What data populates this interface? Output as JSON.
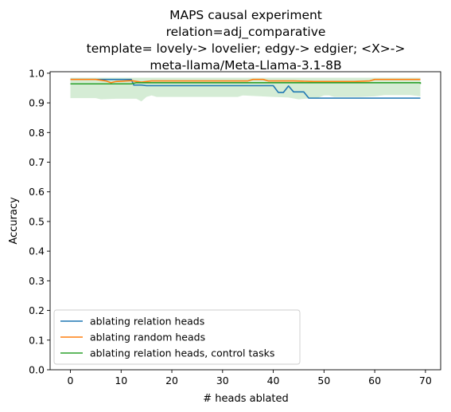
{
  "chart_data": {
    "type": "line",
    "title_lines": [
      "MAPS causal experiment",
      "relation=adj_comparative",
      "template= lovely-> lovelier; edgy-> edgier; <X>->",
      "meta-llama/Meta-Llama-3.1-8B"
    ],
    "xlabel": "# heads ablated",
    "ylabel": "Accuracy",
    "xlim": [
      -4,
      73
    ],
    "ylim": [
      0.0,
      1.005
    ],
    "xticks": [
      0,
      10,
      20,
      30,
      40,
      50,
      60,
      70
    ],
    "xtick_labels": [
      "0",
      "10",
      "20",
      "30",
      "40",
      "50",
      "60",
      "70"
    ],
    "yticks": [
      0.0,
      0.1,
      0.2,
      0.3,
      0.4,
      0.5,
      0.6,
      0.7,
      0.8,
      0.9,
      1.0
    ],
    "ytick_labels": [
      "0.0",
      "0.1",
      "0.2",
      "0.3",
      "0.4",
      "0.5",
      "0.6",
      "0.7",
      "0.8",
      "0.9",
      "1.0"
    ],
    "grid": false,
    "legend_position": "lower-left",
    "series": [
      {
        "name": "ablating relation heads",
        "color": "#1f77b4",
        "points": [
          [
            0,
            0.979
          ],
          [
            6,
            0.979
          ],
          [
            12,
            0.979
          ],
          [
            12.5,
            0.96
          ],
          [
            14,
            0.96
          ],
          [
            15,
            0.958
          ],
          [
            30,
            0.958
          ],
          [
            40,
            0.958
          ],
          [
            41,
            0.935
          ],
          [
            42,
            0.935
          ],
          [
            43,
            0.957
          ],
          [
            44,
            0.937
          ],
          [
            46,
            0.937
          ],
          [
            47,
            0.916
          ],
          [
            55,
            0.916
          ],
          [
            69,
            0.916
          ]
        ]
      },
      {
        "name": "ablating random heads",
        "color": "#ff7f0e",
        "points": [
          [
            0,
            0.979
          ],
          [
            5,
            0.979
          ],
          [
            7,
            0.974
          ],
          [
            8,
            0.968
          ],
          [
            9,
            0.972
          ],
          [
            12,
            0.975
          ],
          [
            14,
            0.97
          ],
          [
            16,
            0.974
          ],
          [
            25,
            0.974
          ],
          [
            35,
            0.974
          ],
          [
            36,
            0.979
          ],
          [
            38,
            0.979
          ],
          [
            39,
            0.974
          ],
          [
            44,
            0.974
          ],
          [
            48,
            0.972
          ],
          [
            56,
            0.972
          ],
          [
            59,
            0.974
          ],
          [
            60,
            0.979
          ],
          [
            69,
            0.979
          ]
        ]
      },
      {
        "name": "ablating relation heads, control tasks",
        "color": "#2ca02c",
        "fill": "#2ca02c",
        "band_upper": [
          [
            0,
            0.985
          ],
          [
            69,
            0.985
          ]
        ],
        "band_lower": [
          [
            0,
            0.916
          ],
          [
            5,
            0.916
          ],
          [
            6,
            0.912
          ],
          [
            9,
            0.914
          ],
          [
            13,
            0.914
          ],
          [
            14,
            0.905
          ],
          [
            15,
            0.92
          ],
          [
            16,
            0.925
          ],
          [
            17,
            0.92
          ],
          [
            30,
            0.92
          ],
          [
            33,
            0.92
          ],
          [
            34,
            0.925
          ],
          [
            40,
            0.92
          ],
          [
            43,
            0.918
          ],
          [
            45,
            0.912
          ],
          [
            49,
            0.918
          ],
          [
            50,
            0.925
          ],
          [
            51,
            0.925
          ],
          [
            52,
            0.92
          ],
          [
            57,
            0.92
          ],
          [
            60,
            0.922
          ],
          [
            62,
            0.926
          ],
          [
            67,
            0.926
          ],
          [
            69,
            0.922
          ]
        ],
        "points": [
          [
            0,
            0.964
          ],
          [
            12,
            0.964
          ],
          [
            13,
            0.968
          ],
          [
            69,
            0.968
          ],
          [
            69,
            0.964
          ]
        ]
      }
    ]
  }
}
